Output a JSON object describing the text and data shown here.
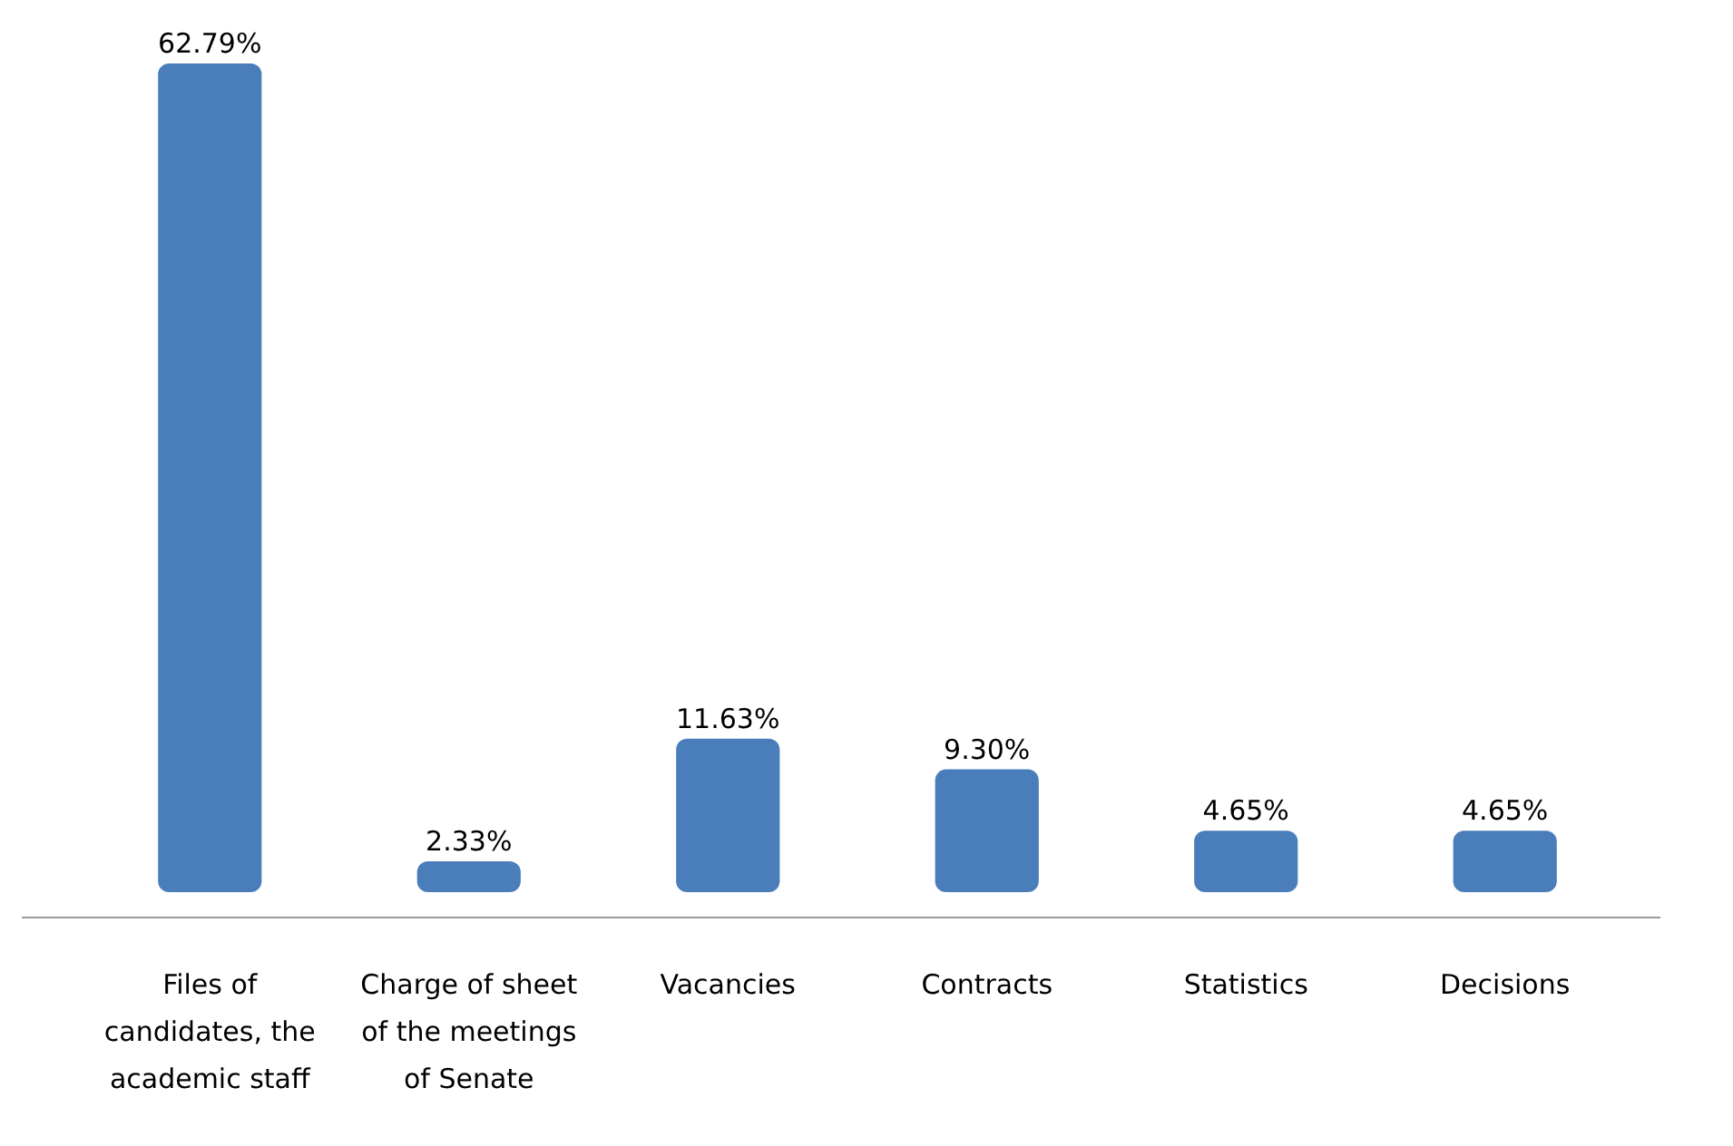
{
  "chart_data": {
    "type": "bar",
    "categories": [
      "Files of candidates, the academic staff",
      "Charge of sheet of the meetings of Senate",
      "Vacancies",
      "Contracts",
      "Statistics",
      "Decisions"
    ],
    "values": [
      62.79,
      2.33,
      11.63,
      9.3,
      4.65,
      4.65
    ],
    "value_labels": [
      "62.79%",
      "2.33%",
      "11.63%",
      "9.30%",
      "4.65%",
      "4.65%"
    ],
    "color": "#4a7ebb"
  }
}
